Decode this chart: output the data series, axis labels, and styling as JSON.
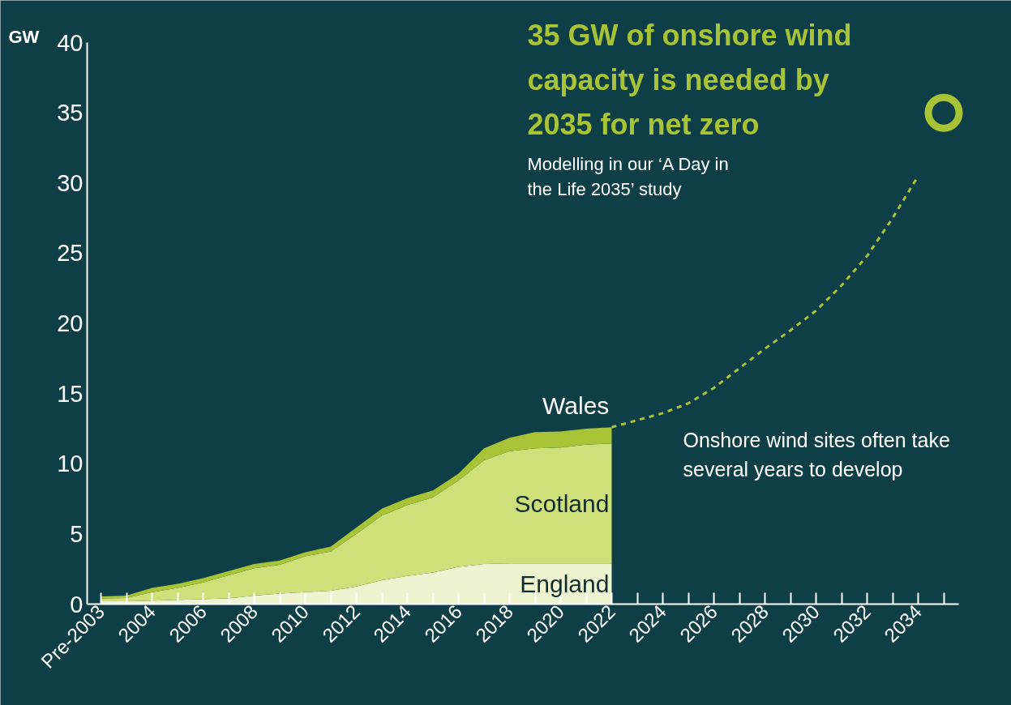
{
  "chart_data": {
    "type": "area",
    "stacked": true,
    "title": "35 GW of onshore wind capacity is needed by 2035 for net zero",
    "subtitle": "Modelling in our ‘A Day in the Life 2035’ study",
    "ylabel": "GW",
    "annotations": [
      "Onshore wind sites often take several years to develop"
    ],
    "categories": [
      "Pre-2003",
      null,
      "2004",
      null,
      "2006",
      null,
      "2008",
      null,
      "2010",
      null,
      "2012",
      null,
      "2014",
      null,
      "2016",
      null,
      "2018",
      null,
      "2020",
      null,
      "2022",
      null,
      "2024",
      null,
      "2026",
      null,
      "2028",
      null,
      "2030",
      null,
      "2032",
      null,
      "2034",
      null
    ],
    "ylim": [
      0,
      40
    ],
    "yticks": [
      0,
      5,
      10,
      15,
      20,
      25,
      30,
      35,
      40
    ],
    "grid": false,
    "series": [
      {
        "name": "England",
        "color": "#eef4d0",
        "values": [
          0.2,
          0.2,
          0.25,
          0.3,
          0.35,
          0.4,
          0.6,
          0.75,
          0.85,
          0.95,
          1.25,
          1.7,
          2.0,
          2.25,
          2.65,
          2.85,
          2.9,
          2.9,
          2.9,
          2.9,
          2.9,
          null,
          null,
          null,
          null,
          null,
          null,
          null,
          null,
          null,
          null,
          null,
          null,
          null
        ]
      },
      {
        "name": "Scotland",
        "color": "#cfe07a",
        "values": [
          0.2,
          0.23,
          0.6,
          0.85,
          1.2,
          1.65,
          1.95,
          2.05,
          2.55,
          2.8,
          3.75,
          4.6,
          5.05,
          5.35,
          6.15,
          7.4,
          8.0,
          8.2,
          8.25,
          8.45,
          8.55,
          null,
          null,
          null,
          null,
          null,
          null,
          null,
          null,
          null,
          null,
          null,
          null,
          null
        ]
      },
      {
        "name": "Wales",
        "color": "#a9c337",
        "values": [
          0.15,
          0.17,
          0.3,
          0.3,
          0.3,
          0.3,
          0.3,
          0.3,
          0.3,
          0.35,
          0.45,
          0.5,
          0.5,
          0.5,
          0.5,
          0.85,
          0.95,
          1.15,
          1.15,
          1.15,
          1.15,
          null,
          null,
          null,
          null,
          null,
          null,
          null,
          null,
          null,
          null,
          null,
          null,
          null
        ]
      },
      {
        "type": "line",
        "line_style": "dashed",
        "color": "#a9c337",
        "values": [
          null,
          null,
          null,
          null,
          null,
          null,
          null,
          null,
          null,
          null,
          null,
          null,
          null,
          null,
          null,
          null,
          null,
          null,
          null,
          null,
          12.6,
          13.1,
          13.6,
          14.3,
          15.4,
          16.8,
          18.2,
          19.5,
          20.9,
          22.7,
          24.8,
          27.5,
          30.5,
          null
        ]
      },
      {
        "type": "scatter",
        "marker": "circle",
        "color": "#a9c337",
        "values": [
          null,
          null,
          null,
          null,
          null,
          null,
          null,
          null,
          null,
          null,
          null,
          null,
          null,
          null,
          null,
          null,
          null,
          null,
          null,
          null,
          null,
          null,
          null,
          null,
          null,
          null,
          null,
          null,
          null,
          null,
          null,
          null,
          null,
          35
        ]
      }
    ]
  }
}
